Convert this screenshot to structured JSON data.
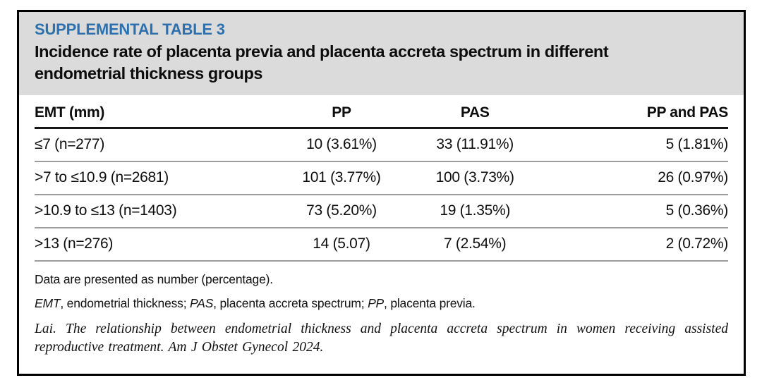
{
  "panel": {
    "label": "SUPPLEMENTAL TABLE 3",
    "title_line1": "Incidence rate of placenta previa and placenta accreta spectrum in different",
    "title_line2": "endometrial thickness groups"
  },
  "colors": {
    "accent_blue": "#2d70ad",
    "band_gray": "#dbdbdb",
    "rule_gray": "#9c9c9c"
  },
  "table": {
    "columns": [
      "EMT (mm)",
      "PP",
      "PAS",
      "PP and PAS"
    ],
    "rows": [
      {
        "cells": [
          "≤7 (n=277)",
          "10 (3.61%)",
          "33 (11.91%)",
          "5 (1.81%)"
        ]
      },
      {
        "cells": [
          ">7 to ≤10.9 (n=2681)",
          "101 (3.77%)",
          "100 (3.73%)",
          "26 (0.97%)"
        ]
      },
      {
        "cells": [
          ">10.9 to ≤13 (n=1403)",
          "73 (5.20%)",
          "19 (1.35%)",
          "5 (0.36%)"
        ]
      },
      {
        "cells": [
          ">13 (n=276)",
          "14 (5.07)",
          "7 (2.54%)",
          "2 (0.72%)"
        ]
      }
    ]
  },
  "footnotes": {
    "presentation": "Data are presented as number (percentage).",
    "abbr_emt": "EMT",
    "abbr_emt_def": ", endometrial thickness; ",
    "abbr_pas": "PAS",
    "abbr_pas_def": ", placenta accreta spectrum; ",
    "abbr_pp": "PP",
    "abbr_pp_def": ", placenta previa.",
    "citation": "Lai. The relationship between endometrial thickness and placenta accreta spectrum in women receiving assisted reproductive treatment. Am J Obstet Gynecol 2024."
  }
}
